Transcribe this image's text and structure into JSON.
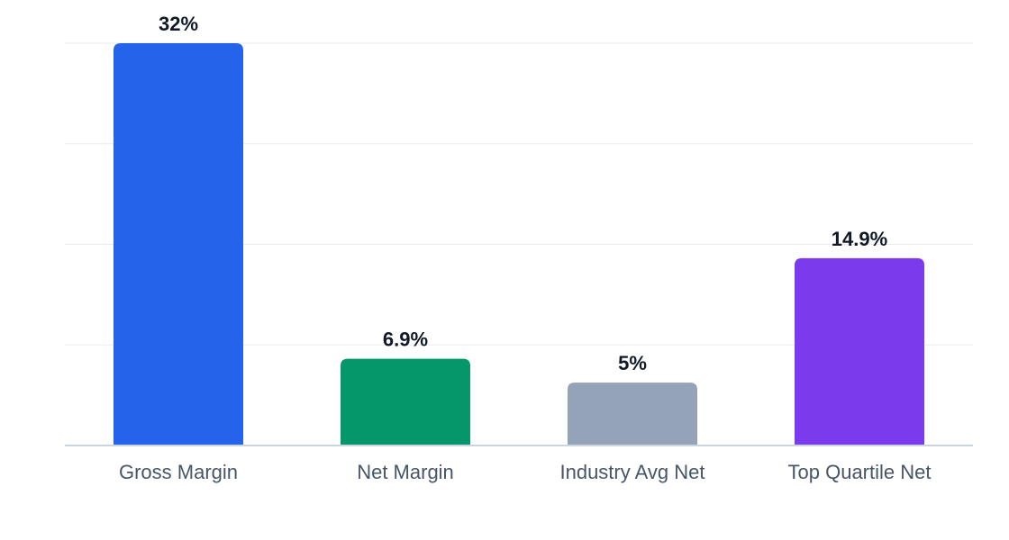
{
  "chart_data": {
    "type": "bar",
    "title": "",
    "xlabel": "",
    "ylabel": "",
    "categories": [
      "Gross Margin",
      "Net Margin",
      "Industry Avg Net",
      "Top Quartile Net"
    ],
    "values": [
      32,
      6.9,
      5,
      14.9
    ],
    "value_labels": [
      "32%",
      "6.9%",
      "5%",
      "14.9%"
    ],
    "colors": [
      "#2563eb",
      "#059669",
      "#94a3b8",
      "#7c3aed"
    ],
    "ylim": [
      0,
      32
    ],
    "grid": true,
    "legend": "none"
  }
}
